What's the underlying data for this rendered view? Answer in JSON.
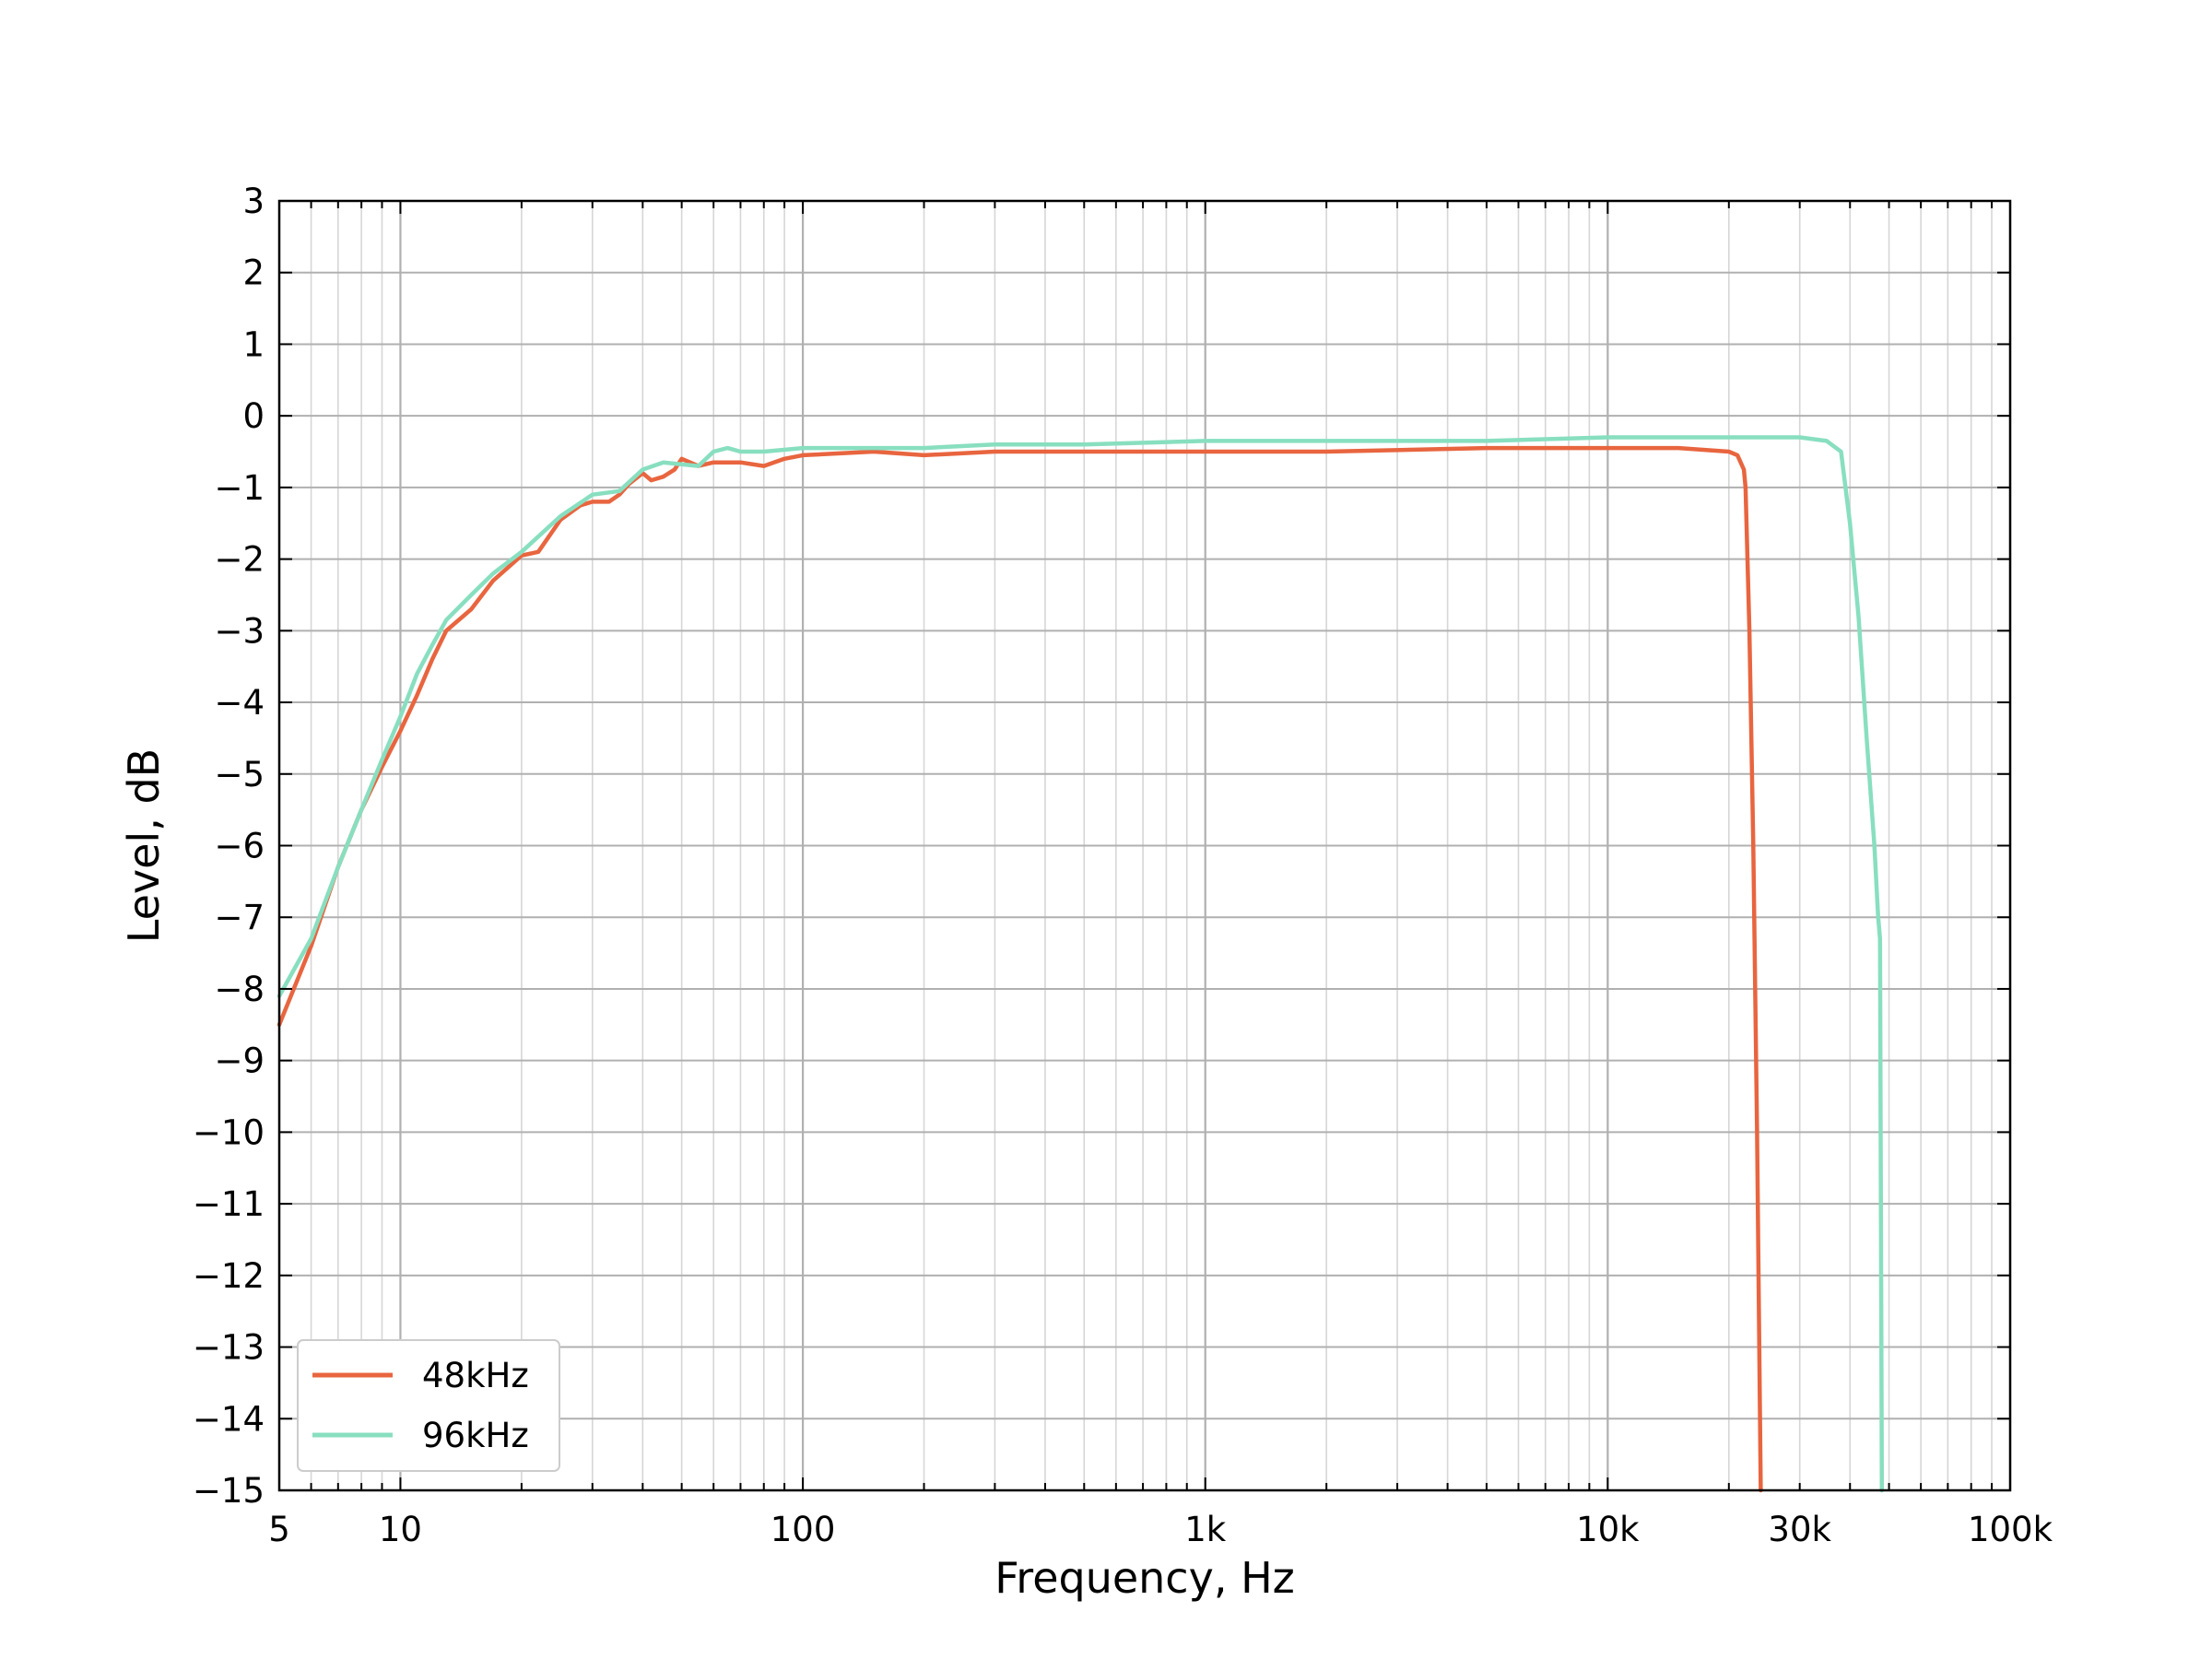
{
  "chart_data": {
    "type": "line",
    "xlabel": "Frequency, Hz",
    "ylabel": "Level, dB",
    "x_scale": "log",
    "xlim": [
      5,
      100000
    ],
    "ylim": [
      -15,
      3
    ],
    "grid": true,
    "legend_position": "bottom-left",
    "x_ticks": [
      {
        "value": 5,
        "label": "5"
      },
      {
        "value": 10,
        "label": "10"
      },
      {
        "value": 100,
        "label": "100"
      },
      {
        "value": 1000,
        "label": "1k"
      },
      {
        "value": 10000,
        "label": "10k"
      },
      {
        "value": 30000,
        "label": "30k"
      },
      {
        "value": 100000,
        "label": "100k"
      }
    ],
    "y_ticks": [
      {
        "value": 3,
        "label": "3"
      },
      {
        "value": 2,
        "label": "2"
      },
      {
        "value": 1,
        "label": "1"
      },
      {
        "value": 0,
        "label": "0"
      },
      {
        "value": -1,
        "label": "−1"
      },
      {
        "value": -2,
        "label": "−2"
      },
      {
        "value": -3,
        "label": "−3"
      },
      {
        "value": -4,
        "label": "−4"
      },
      {
        "value": -5,
        "label": "−5"
      },
      {
        "value": -6,
        "label": "−6"
      },
      {
        "value": -7,
        "label": "−7"
      },
      {
        "value": -8,
        "label": "−8"
      },
      {
        "value": -9,
        "label": "−9"
      },
      {
        "value": -10,
        "label": "−10"
      },
      {
        "value": -11,
        "label": "−11"
      },
      {
        "value": -12,
        "label": "−12"
      },
      {
        "value": -13,
        "label": "−13"
      },
      {
        "value": -14,
        "label": "−14"
      },
      {
        "value": -15,
        "label": "−15"
      }
    ],
    "series": [
      {
        "name": "48kHz",
        "color": "#e8653f",
        "points": [
          [
            5,
            -8.5
          ],
          [
            6,
            -7.4
          ],
          [
            7,
            -6.3
          ],
          [
            8,
            -5.5
          ],
          [
            9,
            -4.9
          ],
          [
            10,
            -4.4
          ],
          [
            11,
            -3.9
          ],
          [
            12,
            -3.4
          ],
          [
            13,
            -3.0
          ],
          [
            15,
            -2.7
          ],
          [
            17,
            -2.3
          ],
          [
            20,
            -1.95
          ],
          [
            22,
            -1.9
          ],
          [
            25,
            -1.45
          ],
          [
            28,
            -1.25
          ],
          [
            30,
            -1.2
          ],
          [
            33,
            -1.2
          ],
          [
            35,
            -1.1
          ],
          [
            37,
            -0.95
          ],
          [
            40,
            -0.8
          ],
          [
            42,
            -0.9
          ],
          [
            45,
            -0.85
          ],
          [
            48,
            -0.75
          ],
          [
            50,
            -0.6
          ],
          [
            55,
            -0.7
          ],
          [
            60,
            -0.65
          ],
          [
            70,
            -0.65
          ],
          [
            80,
            -0.7
          ],
          [
            90,
            -0.6
          ],
          [
            100,
            -0.55
          ],
          [
            150,
            -0.5
          ],
          [
            200,
            -0.55
          ],
          [
            300,
            -0.5
          ],
          [
            500,
            -0.5
          ],
          [
            1000,
            -0.5
          ],
          [
            2000,
            -0.5
          ],
          [
            5000,
            -0.45
          ],
          [
            10000,
            -0.45
          ],
          [
            15000,
            -0.45
          ],
          [
            20000,
            -0.5
          ],
          [
            21000,
            -0.55
          ],
          [
            21800,
            -0.75
          ],
          [
            22000,
            -1.0
          ],
          [
            22500,
            -3.0
          ],
          [
            23000,
            -6.0
          ],
          [
            23500,
            -10.0
          ],
          [
            24000,
            -15.0
          ]
        ]
      },
      {
        "name": "96kHz",
        "color": "#88dfc0",
        "points": [
          [
            5,
            -8.1
          ],
          [
            6,
            -7.3
          ],
          [
            7,
            -6.3
          ],
          [
            8,
            -5.5
          ],
          [
            9,
            -4.8
          ],
          [
            10,
            -4.2
          ],
          [
            11,
            -3.6
          ],
          [
            12,
            -3.2
          ],
          [
            13,
            -2.85
          ],
          [
            15,
            -2.5
          ],
          [
            17,
            -2.2
          ],
          [
            20,
            -1.9
          ],
          [
            25,
            -1.4
          ],
          [
            30,
            -1.1
          ],
          [
            35,
            -1.05
          ],
          [
            40,
            -0.75
          ],
          [
            45,
            -0.65
          ],
          [
            55,
            -0.7
          ],
          [
            60,
            -0.5
          ],
          [
            65,
            -0.45
          ],
          [
            70,
            -0.5
          ],
          [
            80,
            -0.5
          ],
          [
            100,
            -0.45
          ],
          [
            150,
            -0.45
          ],
          [
            200,
            -0.45
          ],
          [
            300,
            -0.4
          ],
          [
            500,
            -0.4
          ],
          [
            1000,
            -0.35
          ],
          [
            2000,
            -0.35
          ],
          [
            5000,
            -0.35
          ],
          [
            10000,
            -0.3
          ],
          [
            20000,
            -0.3
          ],
          [
            30000,
            -0.3
          ],
          [
            35000,
            -0.35
          ],
          [
            38000,
            -0.5
          ],
          [
            40000,
            -1.5
          ],
          [
            42000,
            -2.8
          ],
          [
            44000,
            -4.5
          ],
          [
            46000,
            -6.0
          ],
          [
            47000,
            -7.0
          ],
          [
            47500,
            -7.3
          ],
          [
            48000,
            -15.0
          ]
        ]
      }
    ]
  }
}
